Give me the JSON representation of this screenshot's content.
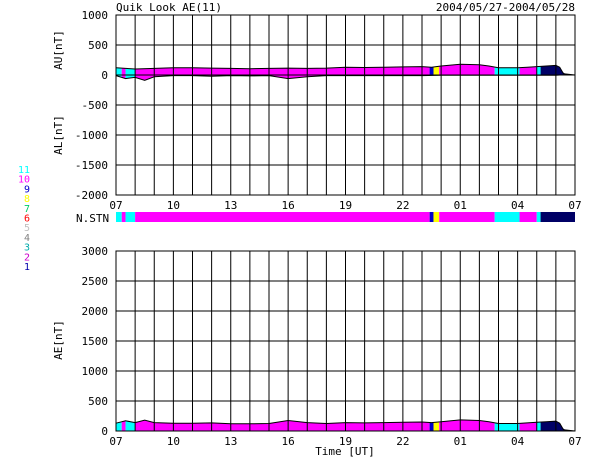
{
  "header": {
    "title": "Quik Look AE(11)",
    "date_range": "2004/05/27-2004/05/28"
  },
  "legend": {
    "items": [
      {
        "label": "11",
        "color": "#00ffff"
      },
      {
        "label": "10",
        "color": "#ff00ff"
      },
      {
        "label": "9",
        "color": "#0000cc"
      },
      {
        "label": "8",
        "color": "#ffff00"
      },
      {
        "label": "7",
        "color": "#00cc66"
      },
      {
        "label": "6",
        "color": "#ff0000"
      },
      {
        "label": "5",
        "color": "#c0c0c0"
      },
      {
        "label": "4",
        "color": "#808080"
      },
      {
        "label": "3",
        "color": "#00aaaa"
      },
      {
        "label": "2",
        "color": "#cc00cc"
      },
      {
        "label": "1",
        "color": "#0000aa"
      }
    ]
  },
  "x_ticks": [
    "07",
    "10",
    "13",
    "16",
    "19",
    "22",
    "01",
    "04",
    "07"
  ],
  "x_axis_label": "Time [UT]",
  "station_bar_label": "N.STN",
  "chart_data": [
    {
      "type": "area",
      "panel": "AU/AL",
      "ylabel_top": "AU[nT]",
      "ylabel_bottom": "AL[nT]",
      "ylim": [
        -2000,
        1000
      ],
      "y_ticks": [
        "1000",
        "500",
        "0",
        "-500",
        "-1000",
        "-1500",
        "-2000"
      ],
      "xlim_hours": [
        0,
        24
      ],
      "grid": true,
      "segments": [
        {
          "start": 0.0,
          "end": 0.3,
          "color": "#00ffff"
        },
        {
          "start": 0.3,
          "end": 0.5,
          "color": "#ff00ff"
        },
        {
          "start": 0.5,
          "end": 1.0,
          "color": "#00ffff"
        },
        {
          "start": 1.0,
          "end": 16.4,
          "color": "#ff00ff"
        },
        {
          "start": 16.4,
          "end": 16.6,
          "color": "#0000cc"
        },
        {
          "start": 16.6,
          "end": 16.9,
          "color": "#ffff00"
        },
        {
          "start": 16.9,
          "end": 19.8,
          "color": "#ff00ff"
        },
        {
          "start": 19.8,
          "end": 21.1,
          "color": "#00ffff"
        },
        {
          "start": 21.1,
          "end": 22.0,
          "color": "#ff00ff"
        },
        {
          "start": 22.0,
          "end": 22.2,
          "color": "#00ffff"
        },
        {
          "start": 22.2,
          "end": 24.0,
          "color": "#000066"
        }
      ],
      "au": {
        "hours": [
          0,
          0.5,
          1,
          2,
          3,
          4,
          5,
          6,
          7,
          8,
          9,
          10,
          11,
          12,
          13,
          14,
          15,
          16,
          16.5,
          17,
          18,
          19,
          19.5,
          20,
          21,
          21.5,
          22,
          22.5,
          23,
          23.2,
          23.4,
          24
        ],
        "values": [
          120,
          110,
          100,
          110,
          120,
          120,
          115,
          110,
          105,
          110,
          115,
          110,
          115,
          130,
          125,
          130,
          135,
          140,
          130,
          150,
          180,
          170,
          150,
          120,
          120,
          130,
          140,
          150,
          160,
          130,
          20,
          0
        ]
      },
      "al": {
        "hours": [
          0,
          0.5,
          1,
          1.5,
          2,
          3,
          4,
          5,
          6,
          7,
          8,
          9,
          10,
          11,
          12,
          13,
          14,
          15,
          16,
          17,
          18,
          19,
          20,
          21,
          22,
          23,
          23.2,
          24
        ],
        "values": [
          -10,
          -60,
          -40,
          -90,
          -30,
          -10,
          -10,
          -20,
          -10,
          -15,
          -10,
          -60,
          -30,
          -10,
          -10,
          -10,
          -10,
          -10,
          -10,
          -5,
          -5,
          -5,
          -5,
          -5,
          -5,
          -5,
          0,
          0
        ]
      }
    },
    {
      "type": "area",
      "panel": "AE",
      "ylabel": "AE[nT]",
      "ylim": [
        0,
        3000
      ],
      "y_ticks": [
        "3000",
        "2500",
        "2000",
        "1500",
        "1000",
        "500",
        "0"
      ],
      "xlim_hours": [
        0,
        24
      ],
      "grid": true,
      "ae": {
        "hours": [
          0,
          0.5,
          1,
          1.5,
          2,
          3,
          4,
          5,
          6,
          7,
          8,
          9,
          10,
          11,
          12,
          13,
          14,
          15,
          16,
          16.5,
          17,
          18,
          19,
          19.5,
          20,
          21,
          21.5,
          22,
          22.5,
          23,
          23.2,
          23.4,
          24
        ],
        "values": [
          130,
          170,
          140,
          180,
          140,
          130,
          130,
          135,
          120,
          120,
          125,
          175,
          140,
          125,
          140,
          135,
          140,
          145,
          150,
          140,
          155,
          185,
          175,
          155,
          125,
          125,
          135,
          145,
          155,
          165,
          130,
          20,
          0
        ]
      }
    }
  ]
}
